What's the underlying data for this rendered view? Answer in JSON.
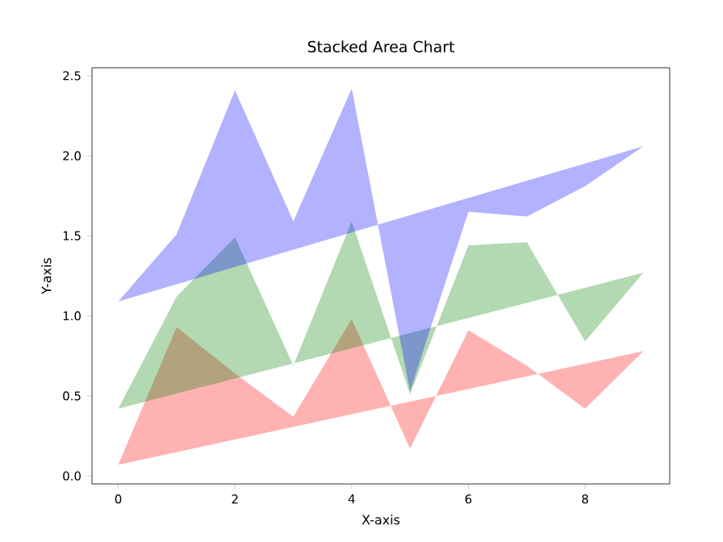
{
  "chart_data": {
    "type": "area",
    "title": "Stacked Area Chart",
    "xlabel": "X-axis",
    "ylabel": "Y-axis",
    "x": [
      0,
      1,
      2,
      3,
      4,
      5,
      6,
      7,
      8,
      9
    ],
    "series": [
      {
        "color": "#ff0000",
        "values": [
          0.07,
          0.93,
          0.64,
          0.37,
          0.98,
          0.17,
          0.91,
          0.69,
          0.42,
          0.78
        ]
      },
      {
        "color": "#008000",
        "values": [
          0.42,
          1.12,
          1.49,
          0.69,
          1.59,
          0.51,
          1.44,
          1.46,
          0.84,
          1.27
        ]
      },
      {
        "color": "#0000ff",
        "values": [
          1.09,
          1.51,
          2.41,
          1.59,
          2.42,
          0.53,
          1.65,
          1.62,
          1.81,
          2.06
        ]
      }
    ],
    "xlim": [
      -0.45,
      9.45
    ],
    "ylim": [
      -0.05,
      2.55
    ],
    "xticks": [
      0,
      2,
      4,
      6,
      8
    ],
    "yticks": [
      {
        "value": 0,
        "label": "0.0"
      },
      0.5,
      {
        "value": 1,
        "label": "1.0"
      },
      1.5,
      {
        "value": 2,
        "label": "2.0"
      },
      2.5
    ]
  }
}
